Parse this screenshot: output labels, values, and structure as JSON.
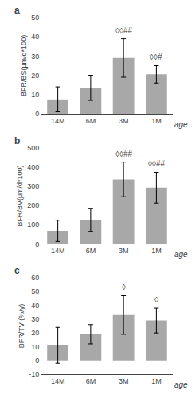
{
  "chart_data": [
    {
      "type": "bar",
      "label": "a",
      "ylabel": "BFR/BS(μm/d*100)",
      "xlabel": "age",
      "categories": [
        "14M",
        "6M",
        "3M",
        "1M"
      ],
      "values": [
        7.5,
        13.5,
        29.0,
        20.5
      ],
      "errors": [
        6.5,
        6.5,
        10.0,
        4.5
      ],
      "color": "#a8a8a8",
      "ylim": [
        0,
        50
      ],
      "yticks": [
        0,
        10,
        20,
        30,
        40,
        50
      ],
      "grid": false,
      "annotations": [
        {
          "category": "3M",
          "text": "◊◊##"
        },
        {
          "category": "1M",
          "text": "◊◊#"
        }
      ]
    },
    {
      "type": "bar",
      "label": "b",
      "ylabel": "BFR/BV(μm/d*100)",
      "xlabel": "age",
      "categories": [
        "14M",
        "6M",
        "3M",
        "1M"
      ],
      "values": [
        68.0,
        125.0,
        335.0,
        292.0
      ],
      "errors": [
        55.0,
        60.0,
        90.0,
        80.0
      ],
      "color": "#a8a8a8",
      "ylim": [
        0,
        500
      ],
      "yticks": [
        0,
        100,
        200,
        300,
        400,
        500
      ],
      "grid": false,
      "annotations": [
        {
          "category": "3M",
          "text": "◊◊##"
        },
        {
          "category": "1M",
          "text": "◊◊##"
        }
      ]
    },
    {
      "type": "bar",
      "label": "c",
      "ylabel": "BFR/TV (%/y)",
      "xlabel": "age",
      "categories": [
        "14M",
        "6M",
        "3M",
        "1M"
      ],
      "values": [
        11.0,
        19.0,
        33.0,
        29.0
      ],
      "errors": [
        13.0,
        7.0,
        14.0,
        9.0
      ],
      "color": "#a8a8a8",
      "ylim": [
        -10,
        60
      ],
      "yticks": [
        -10,
        0,
        10,
        20,
        30,
        40,
        50,
        60
      ],
      "grid": false,
      "annotations": [
        {
          "category": "3M",
          "text": "◊"
        },
        {
          "category": "1M",
          "text": "◊"
        }
      ]
    }
  ]
}
